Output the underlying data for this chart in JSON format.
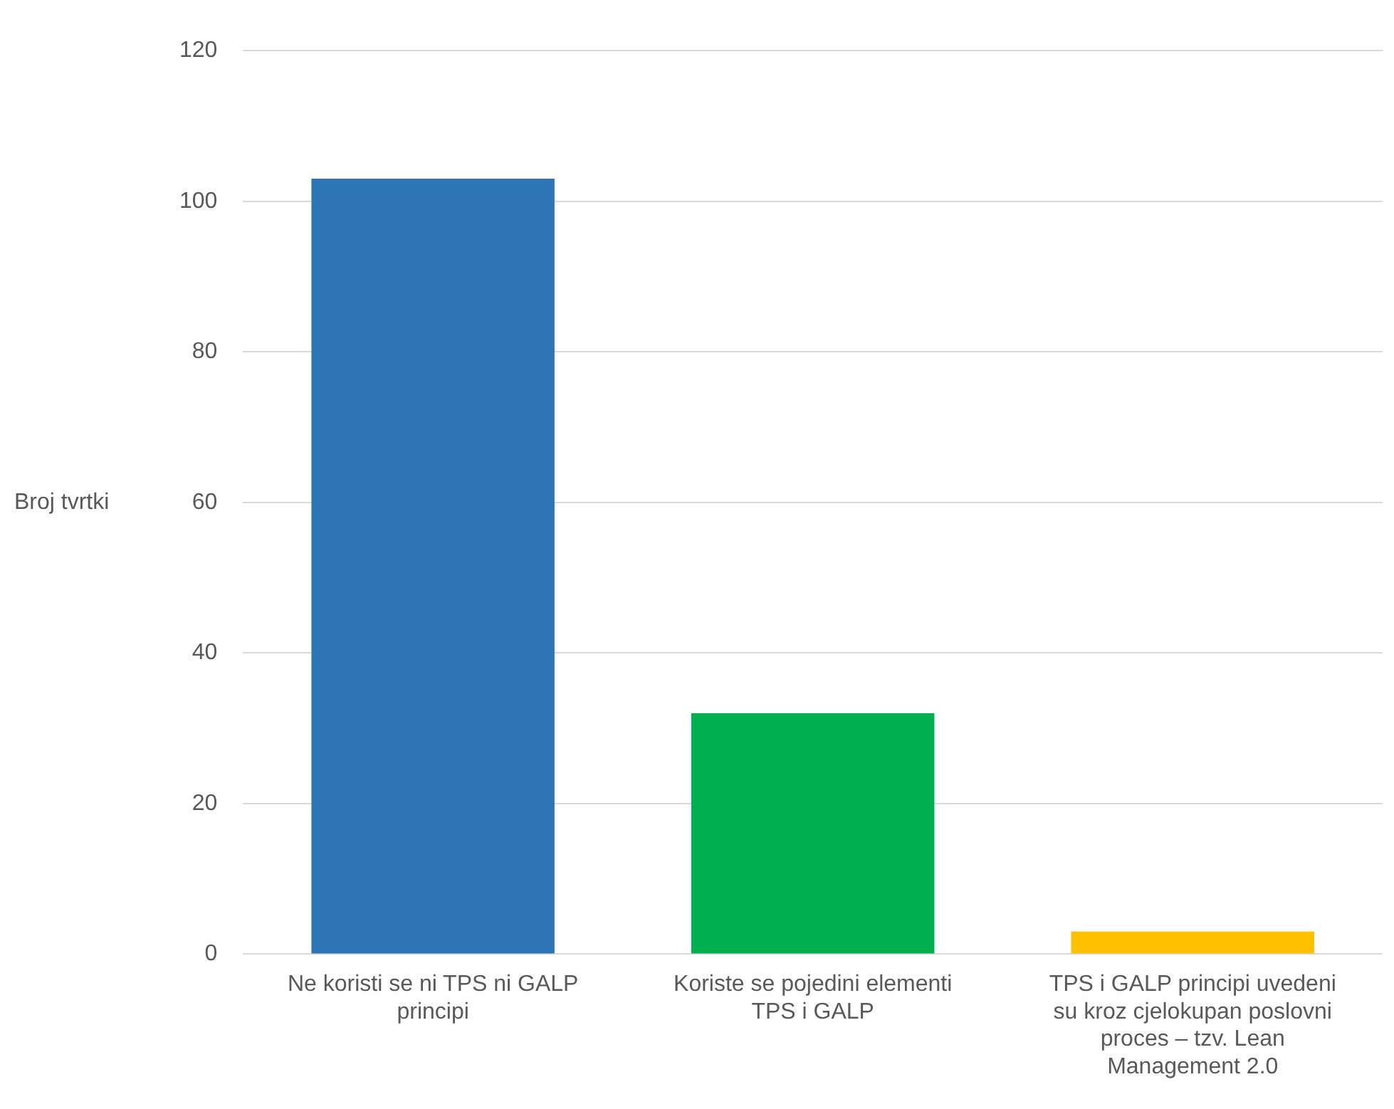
{
  "chart_data": {
    "type": "bar",
    "ylabel": "Broj tvrtki",
    "categories": [
      "Ne koristi se ni TPS ni GALP principi",
      "Koriste se pojedini elementi TPS i GALP",
      "TPS i GALP principi uvedeni su kroz cjelokupan poslovni proces – tzv. Lean Management 2.0"
    ],
    "values": [
      103,
      32,
      3
    ],
    "colors": [
      "#2e75b6",
      "#00b050",
      "#ffc000"
    ],
    "ylim": [
      0,
      120
    ],
    "yticks": [
      0,
      20,
      40,
      60,
      80,
      100,
      120
    ],
    "grid": "y"
  }
}
